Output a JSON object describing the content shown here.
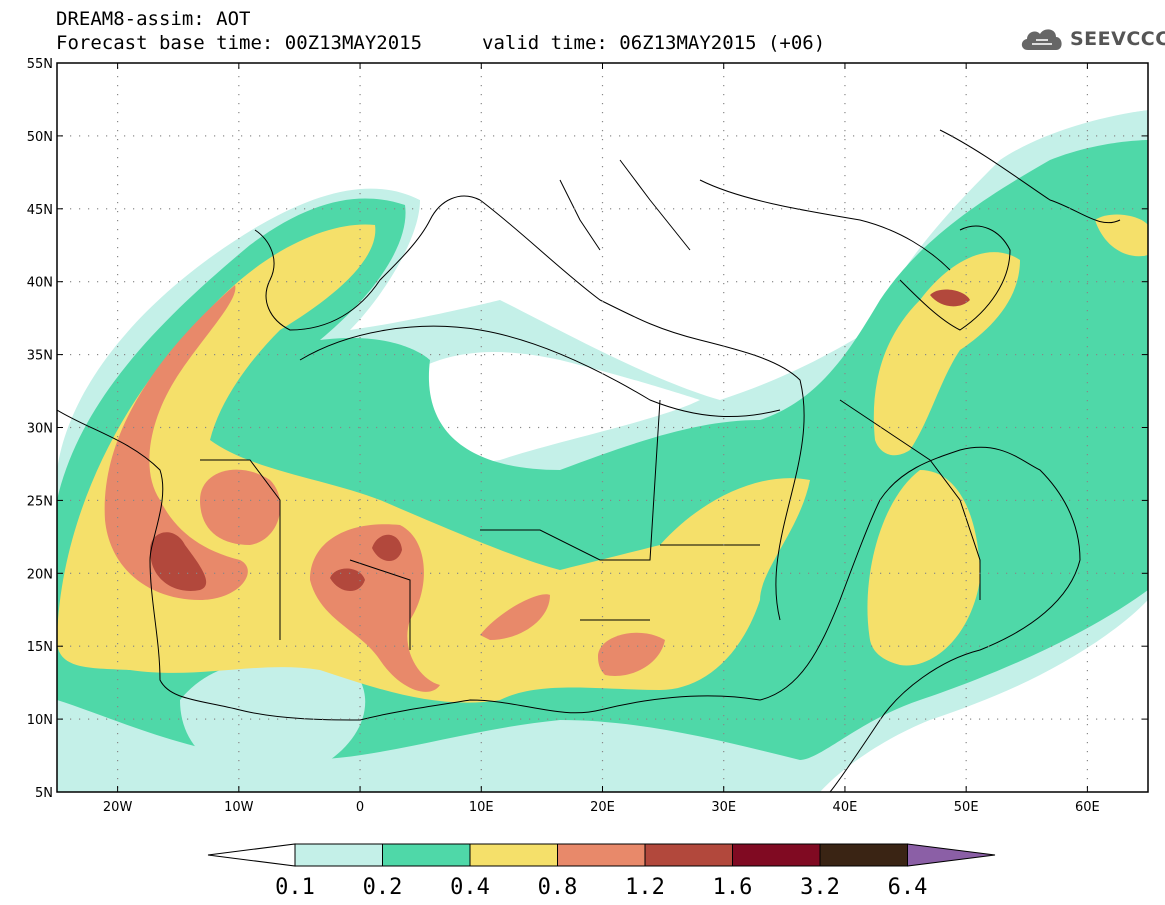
{
  "header": {
    "title": "DREAM8-assim: AOT",
    "base_time": "Forecast base time: 00Z13MAY2015",
    "valid_time": "valid time: 06Z13MAY2015 (+06)"
  },
  "logo": {
    "text": "SEEVCCC",
    "icon": "cloud-icon"
  },
  "axes": {
    "lat_labels": [
      "55N",
      "50N",
      "45N",
      "40N",
      "35N",
      "30N",
      "25N",
      "20N",
      "15N",
      "10N",
      "5N"
    ],
    "lon_labels": [
      "20W",
      "10W",
      "0",
      "10E",
      "20E",
      "30E",
      "40E",
      "50E",
      "60E"
    ]
  },
  "colorbar": {
    "levels": [
      "0.1",
      "0.2",
      "0.4",
      "0.8",
      "1.2",
      "1.6",
      "3.2",
      "6.4"
    ],
    "colors": [
      "#c4f0e8",
      "#4fd8a8",
      "#f5e06a",
      "#e8896a",
      "#b2483c",
      "#800a22",
      "#3a2414",
      "#8b5fa6"
    ]
  }
}
